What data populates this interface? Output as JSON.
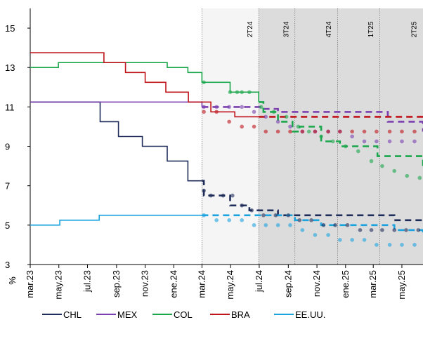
{
  "chart_data": {
    "type": "line",
    "ylabel": "%",
    "ylim": [
      3,
      16
    ],
    "y_ticks": [
      "3",
      "5",
      "7",
      "9",
      "11",
      "13",
      "15"
    ],
    "x_ticks": [
      "mar.23",
      "may.23",
      "jul.23",
      "sep.23",
      "nov.23",
      "ene.24",
      "mar.24",
      "may.24",
      "jul.24",
      "sep.24",
      "nov.24",
      "ene.25",
      "mar.25",
      "may.25"
    ],
    "x_range": [
      "2023-03-01",
      "2025-06-15"
    ],
    "grid": false,
    "legend_position": "bottom",
    "forecast_start": "2024-03-01",
    "bands": [
      {
        "label": "2T24",
        "start": "2024-03-01",
        "end": "2024-06-30",
        "fill": "#f5f5f5"
      },
      {
        "label": "3T24",
        "start": "2024-06-30",
        "end": "2024-09-15",
        "fill": "#dcdcdc"
      },
      {
        "label": "4T24",
        "start": "2024-09-15",
        "end": "2024-12-15",
        "fill": "#dcdcdc"
      },
      {
        "label": "1T25",
        "start": "2024-12-15",
        "end": "2025-03-15",
        "fill": "#dcdcdc"
      },
      {
        "label": "2T25",
        "start": "2025-03-15",
        "end": "2025-06-15",
        "fill": "#dcdcdc"
      }
    ],
    "series": [
      {
        "name": "CHL",
        "color": "#1f2d5a",
        "actual": [
          [
            "2023-03-01",
            11.25
          ],
          [
            "2023-07-28",
            10.25
          ],
          [
            "2023-09-05",
            9.5
          ],
          [
            "2023-10-26",
            9.0
          ],
          [
            "2023-12-18",
            8.25
          ],
          [
            "2024-01-31",
            7.25
          ],
          [
            "2024-03-01",
            7.25
          ]
        ],
        "market": [
          [
            "2024-03-01",
            7.25
          ],
          [
            "2024-03-05",
            6.5
          ],
          [
            "2024-04-30",
            6.0
          ],
          [
            "2024-06-10",
            5.75
          ],
          [
            "2024-08-10",
            5.5
          ],
          [
            "2025-03-15",
            5.5
          ],
          [
            "2025-04-15",
            5.25
          ],
          [
            "2025-06-15",
            5.25
          ]
        ],
        "survey": [
          [
            "2024-03-05",
            6.75
          ],
          [
            "2024-03-20",
            6.5
          ],
          [
            "2024-04-15",
            6.5
          ],
          [
            "2024-05-05",
            6.5
          ],
          [
            "2024-05-25",
            6.0
          ],
          [
            "2024-06-15",
            5.75
          ],
          [
            "2024-07-10",
            5.5
          ],
          [
            "2024-08-05",
            5.5
          ],
          [
            "2024-09-01",
            5.5
          ],
          [
            "2024-09-25",
            5.25
          ],
          [
            "2024-10-20",
            5.25
          ],
          [
            "2024-11-15",
            5.0
          ],
          [
            "2024-12-10",
            5.0
          ],
          [
            "2025-01-05",
            5.0
          ],
          [
            "2025-02-01",
            4.75
          ],
          [
            "2025-02-25",
            4.75
          ],
          [
            "2025-03-20",
            4.75
          ],
          [
            "2025-04-15",
            4.75
          ],
          [
            "2025-05-10",
            4.75
          ],
          [
            "2025-06-05",
            4.75
          ]
        ]
      },
      {
        "name": "MEX",
        "color": "#7b3fb0",
        "actual": [
          [
            "2023-03-01",
            11.25
          ],
          [
            "2024-03-01",
            11.0
          ]
        ],
        "market": [
          [
            "2024-03-01",
            11.0
          ],
          [
            "2024-07-05",
            10.9
          ],
          [
            "2024-08-10",
            10.75
          ],
          [
            "2025-03-15",
            10.75
          ],
          [
            "2025-04-01",
            10.25
          ],
          [
            "2025-06-05",
            10.25
          ],
          [
            "2025-06-15",
            9.75
          ]
        ],
        "survey": [
          [
            "2024-03-05",
            11.0
          ],
          [
            "2024-04-01",
            11.0
          ],
          [
            "2024-04-28",
            11.0
          ],
          [
            "2024-05-25",
            11.0
          ],
          [
            "2024-06-20",
            10.75
          ],
          [
            "2024-07-15",
            10.5
          ],
          [
            "2024-08-10",
            10.25
          ],
          [
            "2024-09-05",
            10.0
          ],
          [
            "2024-10-01",
            9.75
          ],
          [
            "2024-10-28",
            9.75
          ],
          [
            "2024-11-25",
            9.75
          ],
          [
            "2024-12-20",
            9.75
          ],
          [
            "2025-01-15",
            9.5
          ],
          [
            "2025-02-10",
            9.25
          ],
          [
            "2025-03-08",
            9.25
          ],
          [
            "2025-04-05",
            9.25
          ],
          [
            "2025-05-01",
            9.25
          ],
          [
            "2025-05-28",
            9.25
          ]
        ]
      },
      {
        "name": "COL",
        "color": "#1aa64b",
        "actual": [
          [
            "2023-03-01",
            13.0
          ],
          [
            "2023-03-10",
            13.0
          ],
          [
            "2023-04-30",
            13.25
          ],
          [
            "2023-12-18",
            13.0
          ],
          [
            "2024-01-31",
            12.75
          ],
          [
            "2024-03-01",
            12.25
          ],
          [
            "2024-04-30",
            11.75
          ],
          [
            "2024-06-30",
            11.25
          ]
        ],
        "market": [
          [
            "2024-06-30",
            11.25
          ],
          [
            "2024-07-10",
            10.75
          ],
          [
            "2024-08-10",
            10.25
          ],
          [
            "2024-09-10",
            9.75
          ],
          [
            "2024-09-25",
            10.0
          ],
          [
            "2024-11-10",
            9.25
          ],
          [
            "2024-12-20",
            9.0
          ],
          [
            "2025-02-05",
            9.0
          ],
          [
            "2025-03-10",
            8.5
          ],
          [
            "2025-06-15",
            8.0
          ]
        ],
        "survey": [
          [
            "2024-03-05",
            12.25
          ],
          [
            "2024-04-30",
            11.75
          ],
          [
            "2024-05-15",
            11.75
          ],
          [
            "2024-05-25",
            11.75
          ],
          [
            "2024-06-10",
            11.75
          ],
          [
            "2024-07-05",
            11.0
          ],
          [
            "2024-08-01",
            10.75
          ],
          [
            "2024-08-28",
            10.5
          ],
          [
            "2024-09-22",
            10.0
          ],
          [
            "2024-10-15",
            9.75
          ],
          [
            "2024-11-10",
            9.5
          ],
          [
            "2024-12-05",
            9.25
          ],
          [
            "2025-01-01",
            9.0
          ],
          [
            "2025-01-28",
            8.75
          ],
          [
            "2025-02-25",
            8.25
          ],
          [
            "2025-03-20",
            8.0
          ],
          [
            "2025-04-15",
            7.75
          ],
          [
            "2025-05-12",
            7.5
          ],
          [
            "2025-06-08",
            7.4
          ]
        ]
      },
      {
        "name": "BRA",
        "color": "#c0141c",
        "actual": [
          [
            "2023-03-01",
            13.75
          ],
          [
            "2023-08-05",
            13.25
          ],
          [
            "2023-09-20",
            12.75
          ],
          [
            "2023-11-01",
            12.25
          ],
          [
            "2023-12-15",
            11.75
          ],
          [
            "2024-02-01",
            11.25
          ],
          [
            "2024-03-20",
            10.75
          ],
          [
            "2024-05-10",
            10.5
          ],
          [
            "2024-06-30",
            10.5
          ]
        ],
        "market": [
          [
            "2024-06-30",
            10.5
          ],
          [
            "2025-06-15",
            10.5
          ]
        ],
        "survey": [
          [
            "2024-03-05",
            10.75
          ],
          [
            "2024-04-01",
            10.75
          ],
          [
            "2024-04-28",
            10.25
          ],
          [
            "2024-05-25",
            10.0
          ],
          [
            "2024-06-20",
            10.0
          ],
          [
            "2024-07-15",
            9.75
          ],
          [
            "2024-08-10",
            9.75
          ],
          [
            "2024-09-05",
            9.75
          ],
          [
            "2024-10-01",
            9.75
          ],
          [
            "2024-10-28",
            9.75
          ],
          [
            "2024-11-25",
            9.75
          ],
          [
            "2024-12-20",
            9.75
          ],
          [
            "2025-01-15",
            9.75
          ],
          [
            "2025-02-10",
            9.75
          ],
          [
            "2025-03-08",
            9.75
          ],
          [
            "2025-04-05",
            9.75
          ],
          [
            "2025-05-01",
            9.75
          ],
          [
            "2025-05-28",
            9.75
          ]
        ]
      },
      {
        "name": "EE.UU.",
        "color": "#1ba3e0",
        "actual": [
          [
            "2023-03-01",
            5.0
          ],
          [
            "2023-03-22",
            5.0
          ],
          [
            "2023-05-03",
            5.25
          ],
          [
            "2023-07-26",
            5.5
          ],
          [
            "2024-03-01",
            5.5
          ]
        ],
        "market": [
          [
            "2024-03-01",
            5.5
          ],
          [
            "2024-09-15",
            5.25
          ],
          [
            "2024-11-10",
            5.0
          ],
          [
            "2025-04-15",
            4.75
          ],
          [
            "2025-06-15",
            4.5
          ]
        ],
        "survey": [
          [
            "2024-03-05",
            5.5
          ],
          [
            "2024-04-01",
            5.25
          ],
          [
            "2024-04-28",
            5.25
          ],
          [
            "2024-05-25",
            5.25
          ],
          [
            "2024-06-20",
            5.0
          ],
          [
            "2024-07-15",
            5.0
          ],
          [
            "2024-08-10",
            5.0
          ],
          [
            "2024-09-05",
            5.0
          ],
          [
            "2024-10-01",
            4.75
          ],
          [
            "2024-10-28",
            4.5
          ],
          [
            "2024-11-25",
            4.5
          ],
          [
            "2024-12-20",
            4.25
          ],
          [
            "2025-01-15",
            4.25
          ],
          [
            "2025-02-10",
            4.25
          ],
          [
            "2025-03-08",
            4.0
          ],
          [
            "2025-04-05",
            4.0
          ],
          [
            "2025-05-01",
            4.0
          ],
          [
            "2025-05-28",
            4.0
          ]
        ]
      }
    ]
  }
}
